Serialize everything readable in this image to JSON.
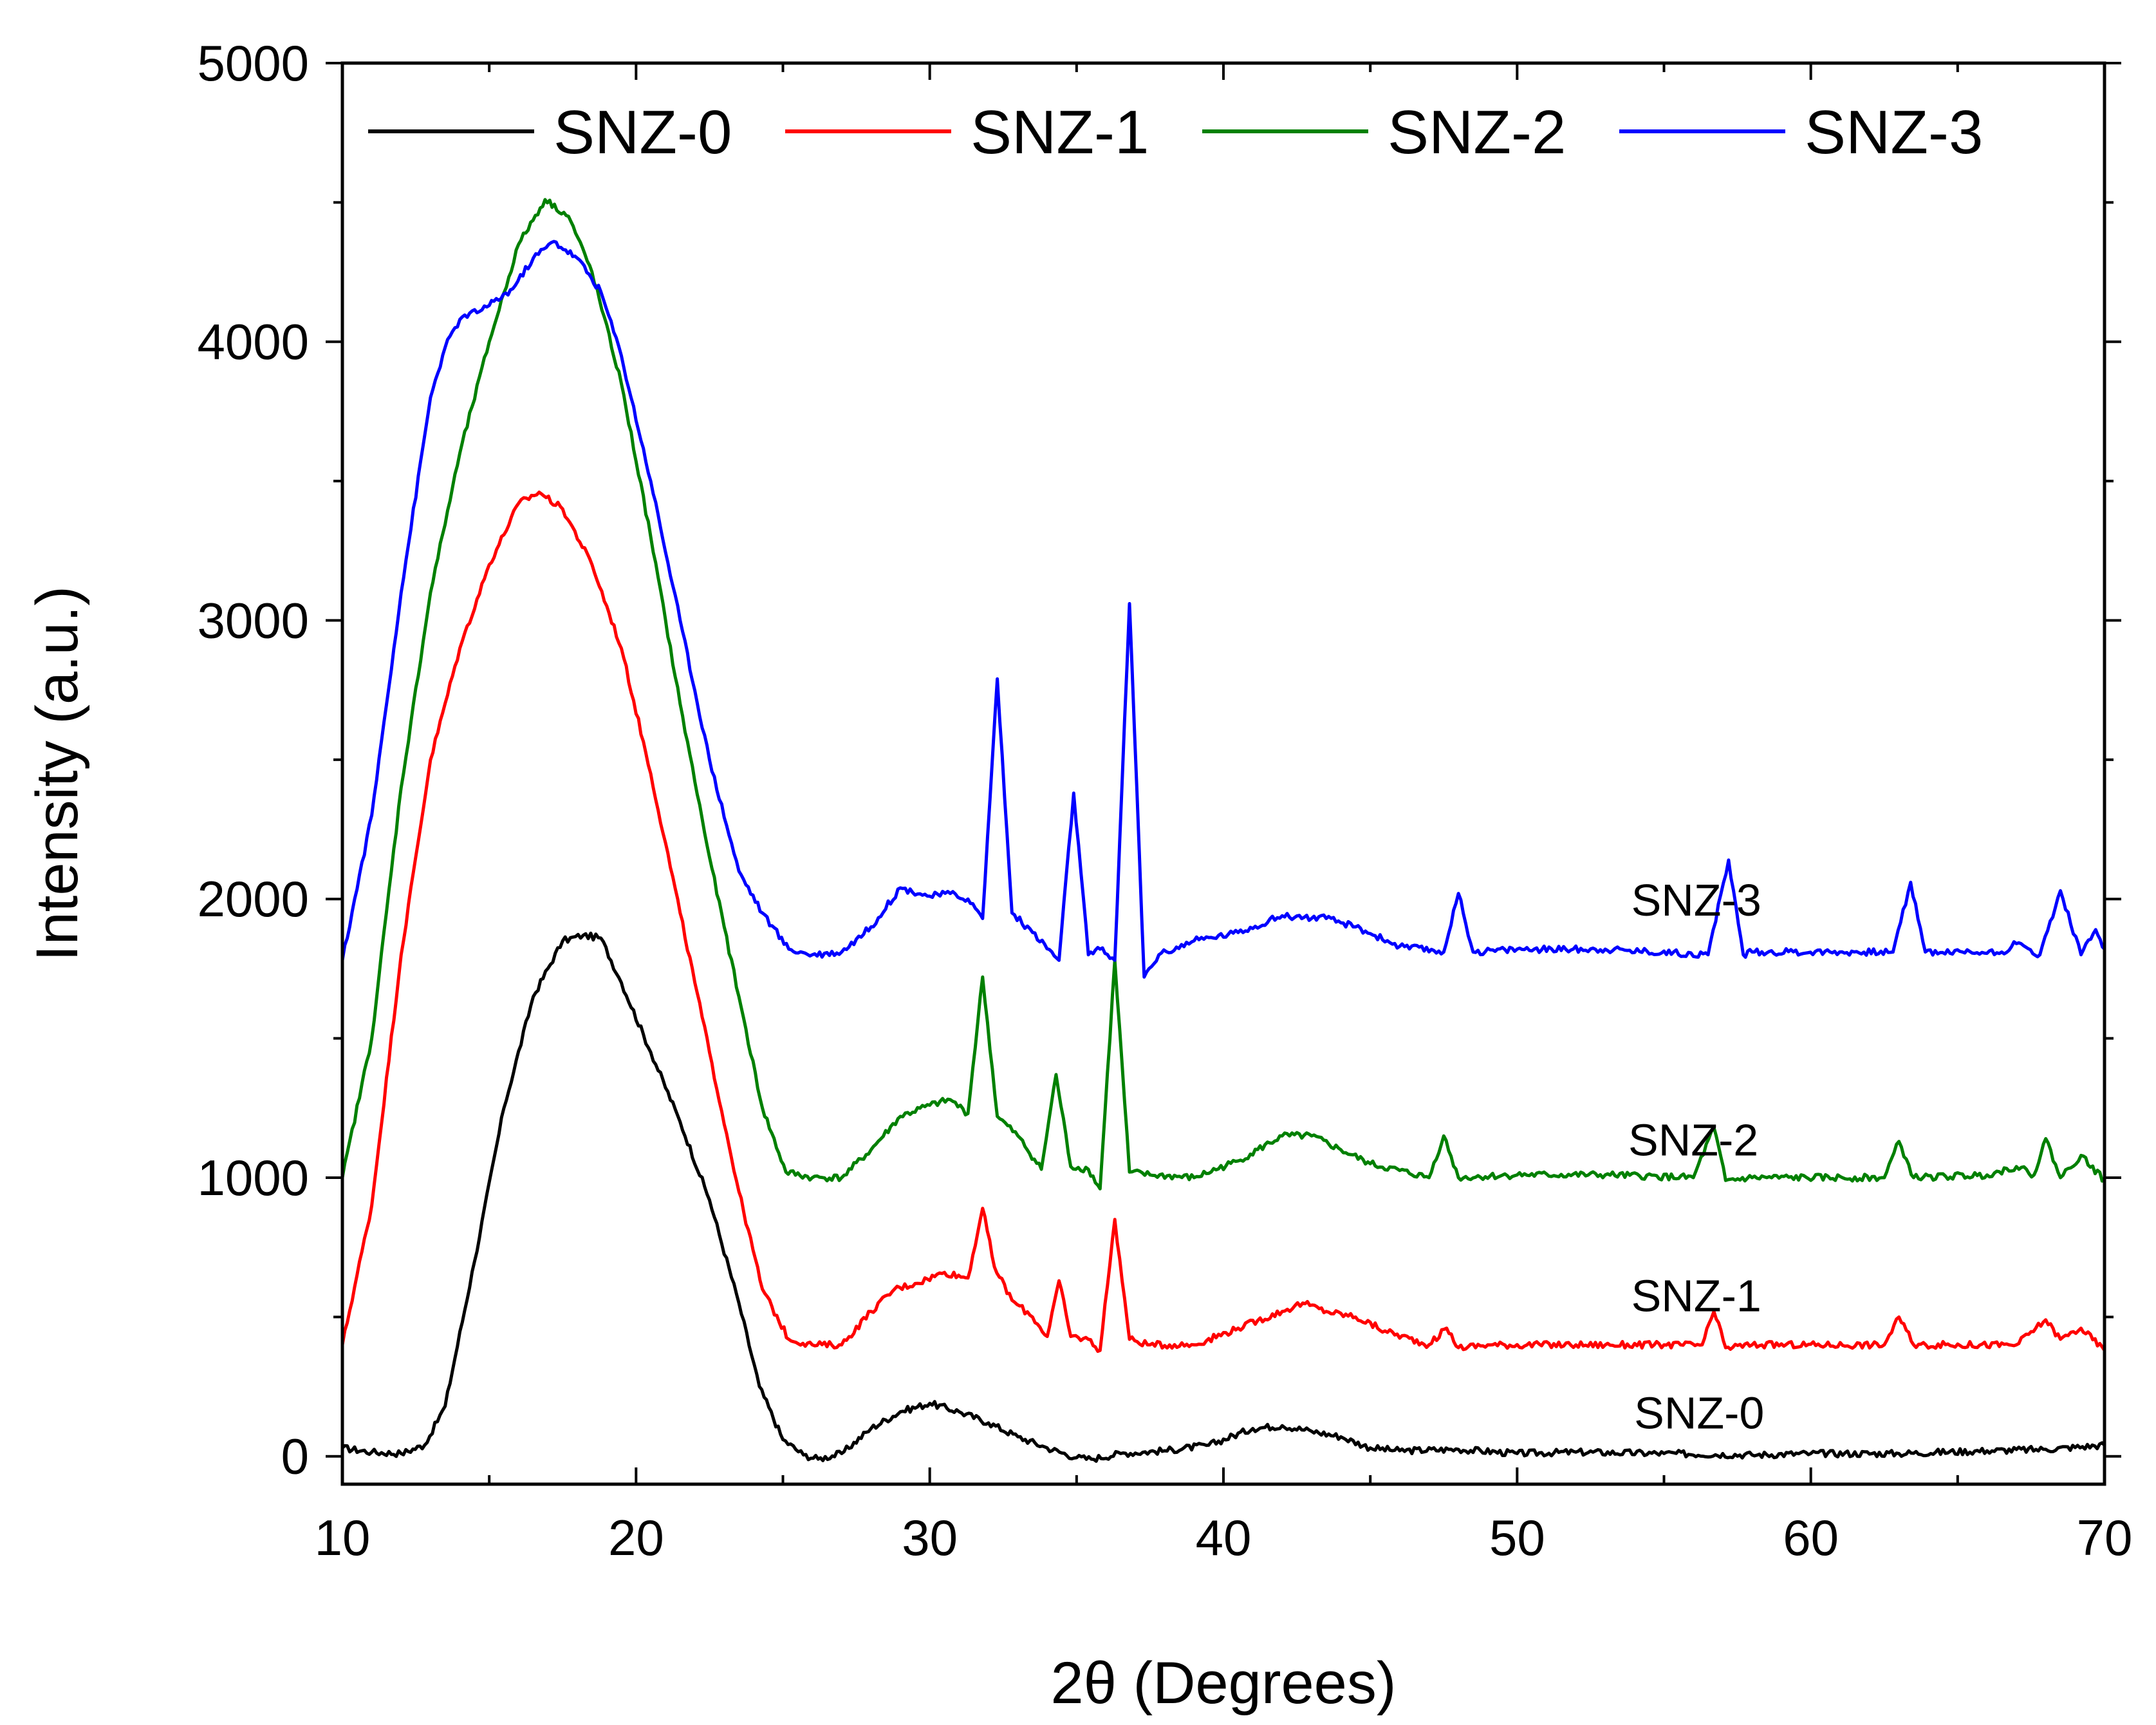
{
  "chart_data": {
    "type": "line",
    "title": "",
    "xlabel": "2θ (Degrees)",
    "ylabel": "Intensity (a.u.)",
    "xlim": [
      10,
      70
    ],
    "ylim": [
      -100,
      5000
    ],
    "xticks": [
      10,
      20,
      30,
      40,
      50,
      60,
      70
    ],
    "yticks": [
      0,
      1000,
      2000,
      3000,
      4000,
      5000
    ],
    "xtick_labels": [
      "10",
      "20",
      "30",
      "40",
      "50",
      "60",
      "70"
    ],
    "ytick_labels": [
      "0",
      "1000",
      "2000",
      "3000",
      "4000",
      "5000"
    ],
    "legend_position": "top",
    "series": [
      {
        "name": "SNZ-0",
        "color": "#000000",
        "label": "SNZ-0",
        "label_at": [
          56.2,
          100
        ],
        "points": [
          [
            10,
            30
          ],
          [
            11,
            15
          ],
          [
            12,
            10
          ],
          [
            12.8,
            40
          ],
          [
            13.5,
            180
          ],
          [
            14.5,
            700
          ],
          [
            15.5,
            1250
          ],
          [
            16.5,
            1650
          ],
          [
            17.5,
            1850
          ],
          [
            18.2,
            1870
          ],
          [
            18.8,
            1860
          ],
          [
            19.5,
            1700
          ],
          [
            20.5,
            1450
          ],
          [
            21.5,
            1200
          ],
          [
            22.5,
            920
          ],
          [
            23.5,
            550
          ],
          [
            24.2,
            250
          ],
          [
            25,
            60
          ],
          [
            25.7,
            5
          ],
          [
            26.2,
            -10
          ],
          [
            27,
            10
          ],
          [
            28,
            100
          ],
          [
            29,
            160
          ],
          [
            30,
            190
          ],
          [
            31,
            160
          ],
          [
            32,
            120
          ],
          [
            33,
            70
          ],
          [
            34,
            30
          ],
          [
            35,
            -5
          ],
          [
            35.5,
            -10
          ],
          [
            36.5,
            10
          ],
          [
            38,
            20
          ],
          [
            39.5,
            40
          ],
          [
            41,
            100
          ],
          [
            42,
            110
          ],
          [
            43,
            90
          ],
          [
            44,
            70
          ],
          [
            45,
            30
          ],
          [
            46,
            20
          ],
          [
            48,
            25
          ],
          [
            50,
            10
          ],
          [
            52,
            15
          ],
          [
            55,
            10
          ],
          [
            58,
            5
          ],
          [
            60,
            10
          ],
          [
            63,
            10
          ],
          [
            66,
            20
          ],
          [
            68,
            25
          ],
          [
            70,
            40
          ]
        ]
      },
      {
        "name": "SNZ-1",
        "color": "#ff0000",
        "label": "SNZ-1",
        "label_at": [
          56.1,
          520
        ],
        "points": [
          [
            10,
            400
          ],
          [
            11,
            900
          ],
          [
            12,
            1800
          ],
          [
            13,
            2500
          ],
          [
            14,
            2900
          ],
          [
            15,
            3200
          ],
          [
            16,
            3420
          ],
          [
            16.7,
            3460
          ],
          [
            17.5,
            3400
          ],
          [
            18.5,
            3200
          ],
          [
            19.5,
            2900
          ],
          [
            20.5,
            2450
          ],
          [
            21.5,
            1950
          ],
          [
            22.5,
            1450
          ],
          [
            23.5,
            950
          ],
          [
            24.3,
            600
          ],
          [
            25.2,
            420
          ],
          [
            26,
            400
          ],
          [
            27,
            400
          ],
          [
            28,
            520
          ],
          [
            28.8,
            600
          ],
          [
            29.5,
            620
          ],
          [
            30.5,
            660
          ],
          [
            31.3,
            640
          ],
          [
            31.8,
            890
          ],
          [
            32.2,
            680
          ],
          [
            32.8,
            560
          ],
          [
            33.5,
            500
          ],
          [
            34,
            430
          ],
          [
            34.4,
            630
          ],
          [
            34.8,
            430
          ],
          [
            35.4,
            420
          ],
          [
            35.8,
            380
          ],
          [
            36.3,
            850
          ],
          [
            36.8,
            420
          ],
          [
            37.5,
            400
          ],
          [
            39,
            400
          ],
          [
            40.5,
            460
          ],
          [
            42,
            520
          ],
          [
            42.7,
            550
          ],
          [
            43.5,
            520
          ],
          [
            44.5,
            500
          ],
          [
            45.5,
            450
          ],
          [
            47,
            400
          ],
          [
            47.6,
            460
          ],
          [
            48,
            390
          ],
          [
            49,
            400
          ],
          [
            52,
            400
          ],
          [
            55,
            400
          ],
          [
            56.3,
            400
          ],
          [
            56.7,
            520
          ],
          [
            57.1,
            390
          ],
          [
            58,
            400
          ],
          [
            62.5,
            400
          ],
          [
            63,
            500
          ],
          [
            63.5,
            400
          ],
          [
            67,
            400
          ],
          [
            68,
            490
          ],
          [
            68.5,
            420
          ],
          [
            69.2,
            460
          ],
          [
            70,
            380
          ]
        ]
      },
      {
        "name": "SNZ-2",
        "color": "#008000",
        "label": "SNZ-2",
        "label_at": [
          56,
          1080
        ],
        "points": [
          [
            10,
            1000
          ],
          [
            11,
            1500
          ],
          [
            12,
            2400
          ],
          [
            13,
            3100
          ],
          [
            14,
            3600
          ],
          [
            15,
            4000
          ],
          [
            16,
            4350
          ],
          [
            16.9,
            4510
          ],
          [
            17.7,
            4450
          ],
          [
            18.5,
            4250
          ],
          [
            19.5,
            3850
          ],
          [
            20.5,
            3300
          ],
          [
            21.5,
            2700
          ],
          [
            22.5,
            2150
          ],
          [
            23.5,
            1650
          ],
          [
            24.3,
            1250
          ],
          [
            25.1,
            1020
          ],
          [
            26,
            1000
          ],
          [
            27,
            1000
          ],
          [
            28,
            1100
          ],
          [
            29,
            1220
          ],
          [
            30,
            1260
          ],
          [
            30.7,
            1280
          ],
          [
            31.3,
            1230
          ],
          [
            31.8,
            1720
          ],
          [
            32.3,
            1220
          ],
          [
            33,
            1150
          ],
          [
            33.8,
            1030
          ],
          [
            34.3,
            1370
          ],
          [
            34.8,
            1040
          ],
          [
            35.4,
            1030
          ],
          [
            35.8,
            960
          ],
          [
            36.3,
            1780
          ],
          [
            36.8,
            1020
          ],
          [
            37.5,
            1010
          ],
          [
            39,
            1000
          ],
          [
            40.5,
            1060
          ],
          [
            42,
            1150
          ],
          [
            43,
            1150
          ],
          [
            44,
            1100
          ],
          [
            45,
            1050
          ],
          [
            47,
            1000
          ],
          [
            47.5,
            1150
          ],
          [
            48,
            1000
          ],
          [
            50,
            1010
          ],
          [
            53,
            1010
          ],
          [
            56,
            1000
          ],
          [
            56.7,
            1180
          ],
          [
            57.1,
            990
          ],
          [
            58,
            1000
          ],
          [
            62.5,
            1000
          ],
          [
            63,
            1130
          ],
          [
            63.5,
            1000
          ],
          [
            66,
            1010
          ],
          [
            67,
            1040
          ],
          [
            67.6,
            1010
          ],
          [
            68,
            1140
          ],
          [
            68.5,
            1000
          ],
          [
            69.2,
            1080
          ],
          [
            70,
            990
          ]
        ]
      },
      {
        "name": "SNZ-3",
        "color": "#0000ff",
        "label": "SNZ-3",
        "label_at": [
          56.1,
          1940
        ],
        "points": [
          [
            10,
            1780
          ],
          [
            11,
            2300
          ],
          [
            12,
            3100
          ],
          [
            13,
            3800
          ],
          [
            13.5,
            3980
          ],
          [
            14,
            4080
          ],
          [
            15,
            4130
          ],
          [
            15.8,
            4190
          ],
          [
            16.5,
            4300
          ],
          [
            17.2,
            4360
          ],
          [
            18,
            4300
          ],
          [
            18.8,
            4180
          ],
          [
            19.5,
            3950
          ],
          [
            20.5,
            3500
          ],
          [
            21.5,
            3000
          ],
          [
            22.5,
            2500
          ],
          [
            23.5,
            2100
          ],
          [
            24.3,
            1950
          ],
          [
            25.2,
            1820
          ],
          [
            26,
            1800
          ],
          [
            27,
            1810
          ],
          [
            28,
            1900
          ],
          [
            29,
            2040
          ],
          [
            30,
            2010
          ],
          [
            30.7,
            2020
          ],
          [
            31.3,
            2000
          ],
          [
            31.8,
            1930
          ],
          [
            32.3,
            2790
          ],
          [
            32.8,
            1950
          ],
          [
            33.5,
            1880
          ],
          [
            34.4,
            1780
          ],
          [
            34.9,
            2380
          ],
          [
            35.4,
            1800
          ],
          [
            35.8,
            1820
          ],
          [
            36.3,
            1780
          ],
          [
            36.8,
            3060
          ],
          [
            37.3,
            1720
          ],
          [
            37.8,
            1800
          ],
          [
            39,
            1850
          ],
          [
            40.5,
            1880
          ],
          [
            42,
            1940
          ],
          [
            43.5,
            1930
          ],
          [
            44.5,
            1900
          ],
          [
            46,
            1830
          ],
          [
            47.5,
            1810
          ],
          [
            48,
            2020
          ],
          [
            48.5,
            1810
          ],
          [
            50,
            1820
          ],
          [
            53,
            1820
          ],
          [
            56.5,
            1800
          ],
          [
            57.2,
            2140
          ],
          [
            57.7,
            1800
          ],
          [
            58,
            1810
          ],
          [
            62.8,
            1810
          ],
          [
            63.4,
            2060
          ],
          [
            63.9,
            1810
          ],
          [
            66.5,
            1810
          ],
          [
            67,
            1840
          ],
          [
            67.8,
            1800
          ],
          [
            68.5,
            2030
          ],
          [
            69.2,
            1800
          ],
          [
            69.7,
            1890
          ],
          [
            70,
            1820
          ]
        ]
      }
    ]
  }
}
